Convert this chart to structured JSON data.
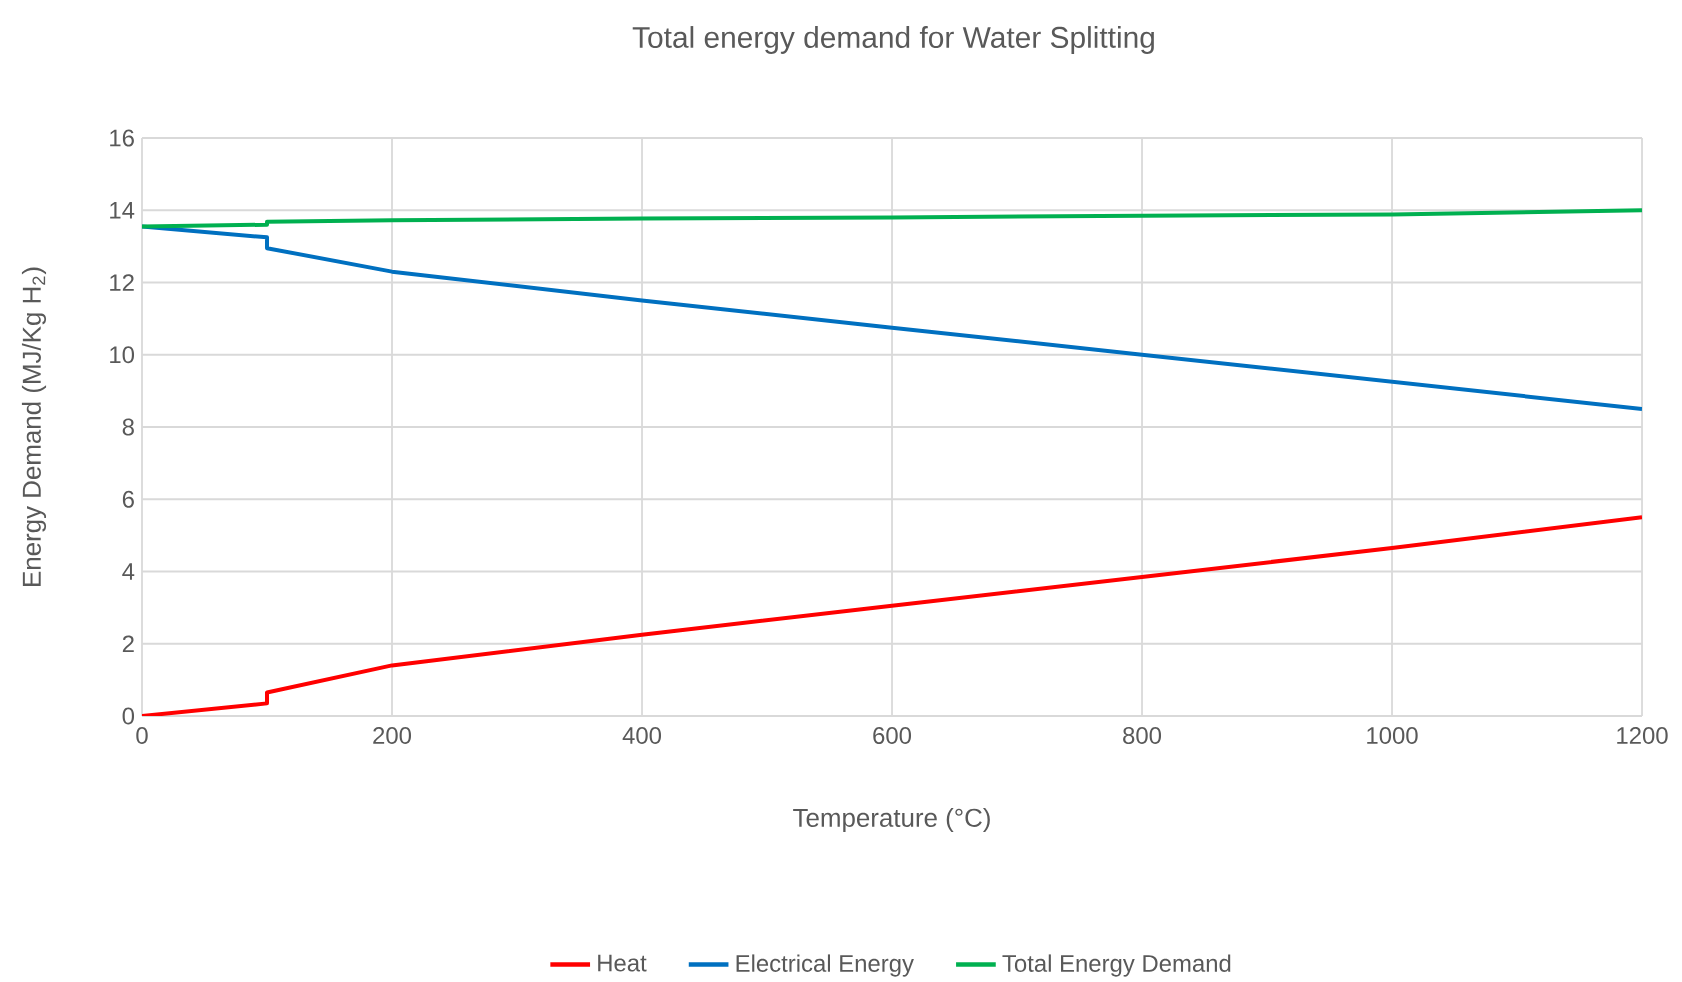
{
  "chart_data": {
    "type": "line",
    "title": "Total energy demand for Water Splitting",
    "xlabel": "Temperature (°C)",
    "ylabel": "Energy Demand (MJ/Kg H$_{2}$)",
    "xlim": [
      0,
      1200
    ],
    "xticks": [
      0,
      200,
      400,
      600,
      800,
      1000,
      1200
    ],
    "ylim": [
      0,
      16
    ],
    "yticks": [
      0,
      2,
      4,
      6,
      8,
      10,
      12,
      14,
      16
    ],
    "grid": true,
    "legend": "bottom",
    "series": [
      {
        "name": "Heat",
        "color": "#ff0000",
        "x": [
          0,
          100,
          100,
          200,
          400,
          600,
          800,
          1000,
          1200
        ],
        "values": [
          0,
          0.35,
          0.65,
          1.4,
          2.25,
          3.05,
          3.85,
          4.65,
          5.5
        ]
      },
      {
        "name": "Electrical Energy",
        "color": "#0070c0",
        "x": [
          0,
          100,
          100,
          200,
          400,
          600,
          800,
          1000,
          1200
        ],
        "values": [
          13.55,
          13.25,
          12.95,
          12.3,
          11.5,
          10.75,
          10.0,
          9.25,
          8.5
        ]
      },
      {
        "name": "Total Energy Demand",
        "color": "#00b050",
        "x": [
          0,
          100,
          100,
          200,
          400,
          600,
          800,
          1000,
          1200
        ],
        "values": [
          13.55,
          13.6,
          13.68,
          13.72,
          13.77,
          13.8,
          13.85,
          13.88,
          14.0
        ]
      }
    ]
  }
}
